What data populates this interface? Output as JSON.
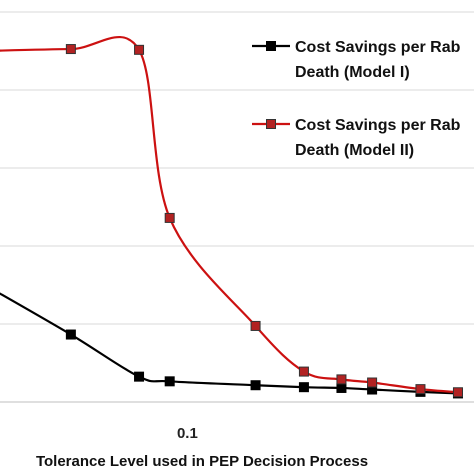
{
  "chart_data": {
    "type": "line",
    "x_scale": "log",
    "xlabel": "Tolerance Level used in PEP Decision Process",
    "ylabel": "",
    "x_ticks": [
      0.1
    ],
    "x_tick_labels": [
      "0.1"
    ],
    "xlim": [
      0.0328,
      0.55
    ],
    "ylim": [
      0,
      100
    ],
    "grid": "horizontal",
    "legend_position": "top-right",
    "series": [
      {
        "name": "Cost Savings per Rabies Death (Model I)",
        "legend_lines": [
          "Cost Savings per Rab",
          "Death (Model I)"
        ],
        "color": "#000000",
        "marker_fill": "#000000",
        "x": [
          0.03,
          0.05,
          0.075,
          0.09,
          0.15,
          0.2,
          0.25,
          0.3,
          0.4,
          0.5
        ],
        "y": [
          30,
          17.3,
          6.5,
          5.3,
          4.3,
          3.8,
          3.6,
          3.2,
          2.6,
          2.2
        ]
      },
      {
        "name": "Cost Savings per Rabies Death (Model II)",
        "legend_lines": [
          "Cost Savings per Rab",
          "Death (Model II)"
        ],
        "color": "#cc1111",
        "marker_fill": "#b22222",
        "x": [
          0.03,
          0.05,
          0.075,
          0.09,
          0.15,
          0.2,
          0.25,
          0.3,
          0.4,
          0.5
        ],
        "y": [
          90,
          90.5,
          90.3,
          47.2,
          19.5,
          7.8,
          5.8,
          5.0,
          3.3,
          2.5
        ]
      }
    ]
  }
}
